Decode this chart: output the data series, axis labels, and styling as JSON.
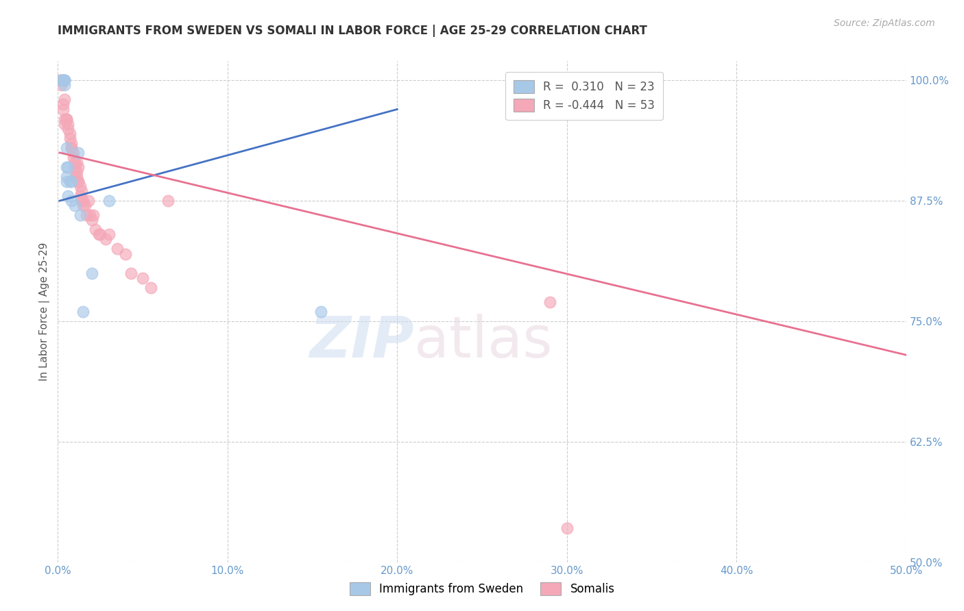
{
  "title": "IMMIGRANTS FROM SWEDEN VS SOMALI IN LABOR FORCE | AGE 25-29 CORRELATION CHART",
  "source": "Source: ZipAtlas.com",
  "ylabel": "In Labor Force | Age 25-29",
  "xlim": [
    0.0,
    0.5
  ],
  "ylim": [
    0.5,
    1.02
  ],
  "xticks": [
    0.0,
    0.1,
    0.2,
    0.3,
    0.4,
    0.5
  ],
  "xticklabels": [
    "0.0%",
    "10.0%",
    "20.0%",
    "30.0%",
    "40.0%",
    "50.0%"
  ],
  "yticks": [
    0.5,
    0.625,
    0.75,
    0.875,
    1.0
  ],
  "yticklabels": [
    "50.0%",
    "62.5%",
    "75.0%",
    "87.5%",
    "100.0%"
  ],
  "sweden_r": 0.31,
  "sweden_n": 23,
  "somali_r": -0.444,
  "somali_n": 53,
  "sweden_color": "#a8c8e8",
  "somali_color": "#f4a8b8",
  "sweden_line_color": "#4472c4",
  "somali_line_color": "#e87090",
  "background_color": "#ffffff",
  "grid_color": "#cccccc",
  "title_color": "#333333",
  "axis_tick_color": "#6699cc",
  "sweden_x": [
    0.002,
    0.003,
    0.003,
    0.004,
    0.004,
    0.004,
    0.004,
    0.005,
    0.005,
    0.005,
    0.005,
    0.006,
    0.006,
    0.007,
    0.008,
    0.008,
    0.01,
    0.012,
    0.013,
    0.015,
    0.03,
    0.155,
    0.02
  ],
  "sweden_y": [
    1.0,
    1.0,
    1.0,
    1.0,
    1.0,
    1.0,
    0.995,
    0.93,
    0.91,
    0.9,
    0.895,
    0.91,
    0.88,
    0.895,
    0.895,
    0.875,
    0.87,
    0.925,
    0.86,
    0.76,
    0.875,
    0.76,
    0.8
  ],
  "somali_x": [
    0.001,
    0.002,
    0.002,
    0.003,
    0.003,
    0.004,
    0.004,
    0.004,
    0.005,
    0.005,
    0.006,
    0.006,
    0.007,
    0.007,
    0.008,
    0.008,
    0.008,
    0.009,
    0.009,
    0.01,
    0.01,
    0.01,
    0.011,
    0.011,
    0.011,
    0.012,
    0.012,
    0.012,
    0.013,
    0.013,
    0.014,
    0.014,
    0.015,
    0.015,
    0.016,
    0.017,
    0.018,
    0.019,
    0.02,
    0.021,
    0.022,
    0.024,
    0.025,
    0.028,
    0.03,
    0.035,
    0.04,
    0.043,
    0.05,
    0.055,
    0.065,
    0.29,
    0.3
  ],
  "somali_y": [
    1.0,
    1.0,
    0.995,
    0.97,
    0.975,
    0.96,
    0.955,
    0.98,
    0.96,
    0.96,
    0.95,
    0.955,
    0.945,
    0.94,
    0.93,
    0.935,
    0.93,
    0.925,
    0.92,
    0.91,
    0.915,
    0.9,
    0.915,
    0.905,
    0.9,
    0.91,
    0.895,
    0.895,
    0.89,
    0.88,
    0.885,
    0.875,
    0.875,
    0.87,
    0.87,
    0.86,
    0.875,
    0.86,
    0.855,
    0.86,
    0.845,
    0.84,
    0.84,
    0.835,
    0.84,
    0.825,
    0.82,
    0.8,
    0.795,
    0.785,
    0.875,
    0.77,
    0.535
  ],
  "sweden_trendline_x": [
    0.001,
    0.2
  ],
  "sweden_trendline_y": [
    0.875,
    0.97
  ],
  "somali_trendline_x": [
    0.001,
    0.5
  ],
  "somali_trendline_y": [
    0.925,
    0.715
  ]
}
